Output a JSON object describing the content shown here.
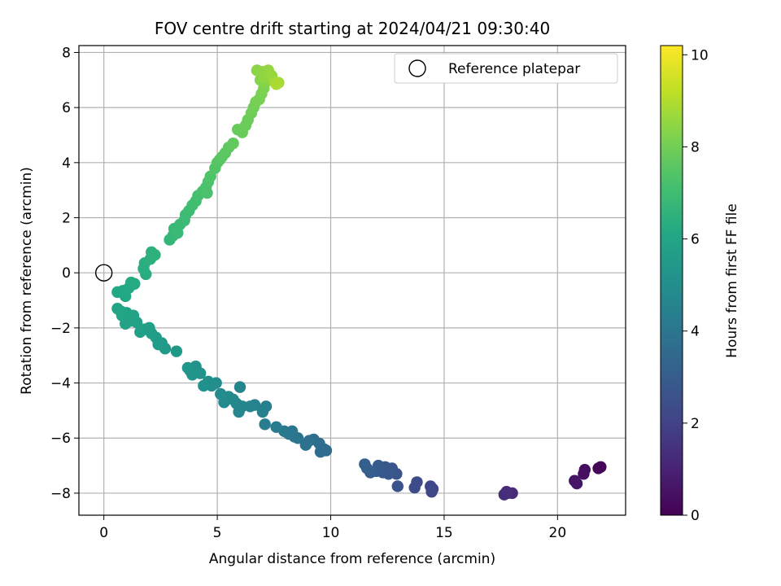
{
  "chart_data": {
    "type": "scatter",
    "title": "FOV centre drift starting at 2024/04/21 09:30:40",
    "xlabel": "Angular distance from reference (arcmin)",
    "ylabel": "Rotation from reference (arcmin)",
    "xlim": [
      -1.1,
      23.0
    ],
    "ylim": [
      -8.8,
      8.25
    ],
    "xticks": [
      0,
      5,
      10,
      15,
      20
    ],
    "yticks": [
      -8,
      -6,
      -4,
      -2,
      0,
      2,
      4,
      6,
      8
    ],
    "grid": true,
    "legend": {
      "location": "upper right",
      "entries": [
        "Reference platepar"
      ]
    },
    "colorbar": {
      "label": "Hours from first FF file",
      "colormap": "viridis",
      "range": [
        0,
        10.2
      ],
      "ticks": [
        0,
        2,
        4,
        6,
        8,
        10
      ]
    },
    "reference_point": {
      "name": "Reference platepar",
      "x": 0,
      "y": 0
    },
    "series": [
      {
        "points": [
          [
            21.9,
            -7.05,
            0.1
          ],
          [
            21.8,
            -7.1,
            0.15
          ],
          [
            21.2,
            -7.15,
            0.35
          ],
          [
            21.15,
            -7.3,
            0.4
          ],
          [
            20.75,
            -7.55,
            0.55
          ],
          [
            20.85,
            -7.65,
            0.6
          ],
          [
            18.0,
            -8.0,
            1.2
          ],
          [
            17.75,
            -7.95,
            1.25
          ],
          [
            17.65,
            -8.05,
            1.3
          ],
          [
            17.8,
            -8.0,
            1.35
          ],
          [
            14.5,
            -7.85,
            2.1
          ],
          [
            14.4,
            -7.75,
            2.15
          ],
          [
            13.8,
            -7.6,
            2.3
          ],
          [
            13.7,
            -7.8,
            2.35
          ],
          [
            14.45,
            -7.95,
            2.2
          ],
          [
            12.95,
            -7.75,
            2.55
          ],
          [
            12.9,
            -7.3,
            2.6
          ],
          [
            12.7,
            -7.1,
            2.7
          ],
          [
            12.6,
            -7.2,
            2.75
          ],
          [
            12.4,
            -7.05,
            2.8
          ],
          [
            12.3,
            -7.25,
            2.85
          ],
          [
            12.1,
            -7.0,
            2.9
          ],
          [
            12.0,
            -7.2,
            2.95
          ],
          [
            11.75,
            -7.25,
            3.0
          ],
          [
            11.6,
            -7.1,
            3.05
          ],
          [
            11.5,
            -6.95,
            3.1
          ],
          [
            12.55,
            -7.3,
            2.78
          ],
          [
            12.2,
            -7.15,
            2.88
          ],
          [
            9.8,
            -6.45,
            3.5
          ],
          [
            9.7,
            -6.4,
            3.55
          ],
          [
            9.55,
            -6.5,
            3.6
          ],
          [
            9.5,
            -6.2,
            3.65
          ],
          [
            9.25,
            -6.05,
            3.7
          ],
          [
            9.05,
            -6.1,
            3.75
          ],
          [
            8.9,
            -6.25,
            3.8
          ],
          [
            8.55,
            -6.0,
            3.9
          ],
          [
            8.4,
            -5.95,
            3.95
          ],
          [
            8.3,
            -5.75,
            4.0
          ],
          [
            8.15,
            -5.85,
            4.05
          ],
          [
            7.95,
            -5.75,
            4.1
          ],
          [
            7.6,
            -5.6,
            4.2
          ],
          [
            7.1,
            -5.5,
            4.3
          ],
          [
            7.15,
            -4.85,
            4.35
          ],
          [
            7.0,
            -5.05,
            4.4
          ],
          [
            6.65,
            -4.8,
            4.5
          ],
          [
            6.45,
            -4.85,
            4.55
          ],
          [
            6.0,
            -4.15,
            4.6
          ],
          [
            6.1,
            -4.85,
            4.62
          ],
          [
            5.95,
            -5.05,
            4.65
          ],
          [
            5.85,
            -4.75,
            4.7
          ],
          [
            5.7,
            -4.6,
            4.75
          ],
          [
            5.5,
            -4.5,
            4.8
          ],
          [
            5.3,
            -4.7,
            4.85
          ],
          [
            5.15,
            -4.4,
            4.9
          ],
          [
            4.95,
            -4.0,
            4.95
          ],
          [
            4.75,
            -4.1,
            5.0
          ],
          [
            4.6,
            -3.95,
            5.05
          ],
          [
            4.4,
            -4.1,
            5.1
          ],
          [
            4.25,
            -3.65,
            5.15
          ],
          [
            4.05,
            -3.4,
            5.2
          ],
          [
            3.8,
            -3.55,
            5.25
          ],
          [
            3.7,
            -3.45,
            5.3
          ],
          [
            3.9,
            -3.7,
            5.22
          ],
          [
            3.2,
            -2.85,
            5.45
          ],
          [
            2.7,
            -2.75,
            5.5
          ],
          [
            2.55,
            -2.55,
            5.55
          ],
          [
            2.4,
            -2.6,
            5.58
          ],
          [
            2.3,
            -2.35,
            5.6
          ],
          [
            2.1,
            -2.2,
            5.65
          ],
          [
            2.0,
            -2.0,
            5.7
          ],
          [
            1.8,
            -2.05,
            5.72
          ],
          [
            1.6,
            -2.15,
            5.75
          ],
          [
            1.45,
            -1.8,
            5.8
          ],
          [
            1.3,
            -1.55,
            5.85
          ],
          [
            1.15,
            -1.75,
            5.88
          ],
          [
            0.95,
            -1.85,
            5.9
          ],
          [
            0.8,
            -1.55,
            5.95
          ],
          [
            0.6,
            -1.3,
            6.0
          ],
          [
            1.0,
            -1.45,
            5.92
          ],
          [
            0.75,
            -1.4,
            5.97
          ],
          [
            0.95,
            -0.85,
            6.05
          ],
          [
            0.6,
            -0.7,
            6.1
          ],
          [
            0.85,
            -0.65,
            6.12
          ],
          [
            1.1,
            -0.55,
            6.15
          ],
          [
            1.2,
            -0.35,
            6.2
          ],
          [
            1.35,
            -0.4,
            6.22
          ],
          [
            1.85,
            -0.05,
            6.3
          ],
          [
            1.75,
            0.15,
            6.35
          ],
          [
            1.8,
            0.35,
            6.4
          ],
          [
            2.05,
            0.5,
            6.45
          ],
          [
            2.1,
            0.75,
            6.5
          ],
          [
            2.25,
            0.65,
            6.52
          ],
          [
            2.9,
            1.2,
            6.7
          ],
          [
            3.05,
            1.35,
            6.75
          ],
          [
            3.1,
            1.6,
            6.8
          ],
          [
            3.25,
            1.45,
            6.82
          ],
          [
            3.35,
            1.75,
            6.85
          ],
          [
            3.55,
            1.9,
            6.9
          ],
          [
            3.6,
            2.1,
            6.95
          ],
          [
            3.75,
            2.25,
            7.0
          ],
          [
            3.9,
            2.45,
            7.05
          ],
          [
            4.05,
            2.6,
            7.1
          ],
          [
            4.15,
            2.8,
            7.15
          ],
          [
            4.35,
            2.95,
            7.2
          ],
          [
            4.5,
            3.1,
            7.25
          ],
          [
            4.6,
            3.3,
            7.3
          ],
          [
            4.7,
            3.5,
            7.35
          ],
          [
            4.55,
            2.9,
            7.27
          ],
          [
            4.9,
            3.8,
            7.4
          ],
          [
            5.0,
            4.0,
            7.45
          ],
          [
            5.1,
            4.1,
            7.5
          ],
          [
            5.2,
            4.2,
            7.55
          ],
          [
            5.35,
            4.35,
            7.6
          ],
          [
            5.5,
            4.55,
            7.65
          ],
          [
            5.7,
            4.7,
            7.7
          ],
          [
            5.9,
            5.2,
            7.8
          ],
          [
            6.1,
            5.1,
            7.82
          ],
          [
            6.25,
            5.35,
            7.85
          ],
          [
            6.35,
            5.55,
            7.9
          ],
          [
            6.5,
            5.8,
            7.95
          ],
          [
            6.6,
            6.0,
            8.0
          ],
          [
            6.7,
            6.2,
            8.05
          ],
          [
            6.85,
            6.3,
            8.1
          ],
          [
            6.95,
            6.5,
            8.15
          ],
          [
            7.05,
            6.7,
            8.2
          ],
          [
            7.1,
            6.9,
            8.3
          ],
          [
            6.9,
            7.0,
            8.35
          ],
          [
            6.75,
            7.35,
            8.4
          ],
          [
            7.0,
            7.3,
            8.45
          ],
          [
            7.1,
            7.1,
            8.5
          ],
          [
            7.25,
            7.35,
            8.55
          ],
          [
            7.4,
            7.15,
            8.6
          ],
          [
            7.5,
            6.95,
            8.7
          ],
          [
            7.7,
            6.9,
            8.8
          ],
          [
            7.6,
            6.85,
            8.9
          ]
        ]
      }
    ]
  }
}
